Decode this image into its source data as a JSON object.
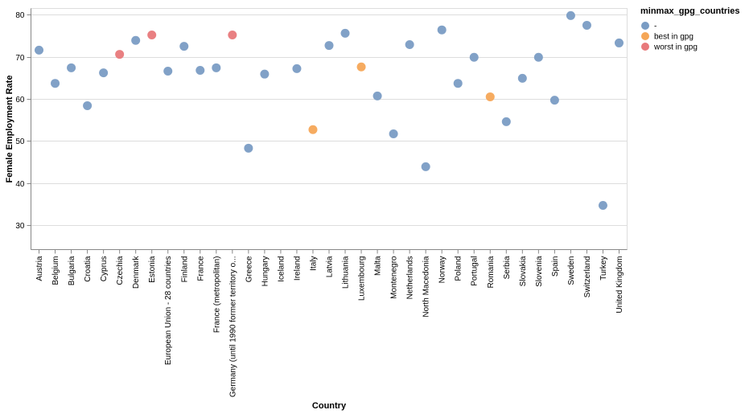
{
  "chart_data": {
    "type": "scatter",
    "title": "",
    "xlabel": "Country",
    "ylabel": "Female Employment Rate",
    "ylim": [
      24.2,
      81.5
    ],
    "yticks": [
      30,
      40,
      50,
      60,
      70,
      80
    ],
    "grid": true,
    "legend": {
      "title": "minmax_gpg_countries",
      "placement": "top-right",
      "entries": [
        {
          "label": "-",
          "color": "#7a9cc4"
        },
        {
          "label": "best in gpg",
          "color": "#f5a657"
        },
        {
          "label": "worst in gpg",
          "color": "#e8797b"
        }
      ]
    },
    "categories": [
      "Austria",
      "Belgium",
      "Bulgaria",
      "Croatia",
      "Cyprus",
      "Czechia",
      "Denmark",
      "Estonia",
      "European Union - 28 countries",
      "Finland",
      "France",
      "France (metropolitan)",
      "Germany (until 1990 former territory o...",
      "Greece",
      "Hungary",
      "Iceland",
      "Ireland",
      "Italy",
      "Latvia",
      "Lithuania",
      "Luxembourg",
      "Malta",
      "Montenegro",
      "Netherlands",
      "North Macedonia",
      "Norway",
      "Poland",
      "Portugal",
      "Romania",
      "Serbia",
      "Slovakia",
      "Slovenia",
      "Spain",
      "Sweden",
      "Switzerland",
      "Turkey",
      "United Kingdom"
    ],
    "values": [
      71.6,
      63.7,
      67.4,
      58.4,
      66.2,
      70.6,
      73.9,
      75.2,
      66.6,
      72.5,
      66.8,
      67.4,
      75.2,
      48.3,
      65.9,
      null,
      67.2,
      52.7,
      72.7,
      75.6,
      67.6,
      60.7,
      51.7,
      72.9,
      43.9,
      76.4,
      63.7,
      69.9,
      60.5,
      54.6,
      64.9,
      69.9,
      59.7,
      79.8,
      77.5,
      34.7,
      73.3
    ],
    "groups": [
      0,
      0,
      0,
      0,
      0,
      2,
      0,
      2,
      0,
      0,
      0,
      0,
      2,
      0,
      0,
      0,
      0,
      1,
      0,
      0,
      1,
      0,
      0,
      0,
      0,
      0,
      0,
      0,
      1,
      0,
      0,
      0,
      0,
      0,
      0,
      0,
      0
    ]
  }
}
